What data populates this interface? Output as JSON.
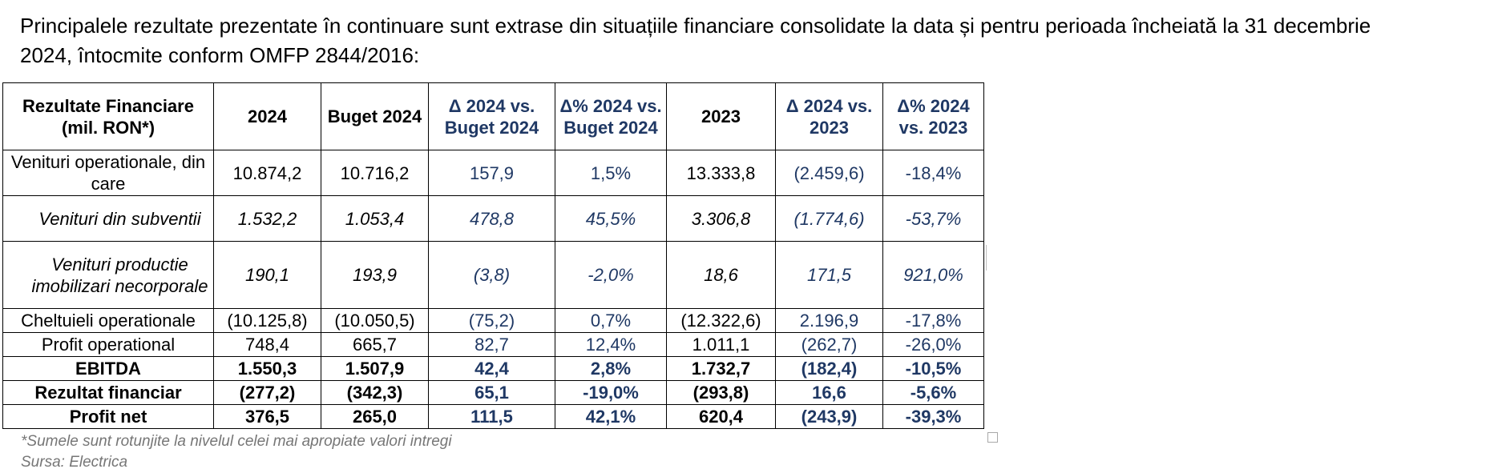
{
  "intro": {
    "line1": "Principalele rezultate prezentate în continuare sunt extrase din situațiile financiare consolidate la data și pentru perioada încheiată la 31 decembrie",
    "line2": "2024, întocmite conform OMFP 2844/2016:"
  },
  "table": {
    "headers": [
      "Rezultate Financiare (mil. RON*)",
      "2024",
      "Buget 2024",
      "Δ 2024 vs. Buget 2024",
      "Δ% 2024 vs. Buget 2024",
      "2023",
      "Δ 2024 vs. 2023",
      "Δ% 2024 vs. 2023"
    ],
    "rows": [
      {
        "style": "normal",
        "cells": [
          "Venituri operationale, din care",
          "10.874,2",
          "10.716,2",
          "157,9",
          "1,5%",
          "13.333,8",
          "(2.459,6)",
          "-18,4%"
        ]
      },
      {
        "style": "italic",
        "cells": [
          "Venituri din subventii",
          "1.532,2",
          "1.053,4",
          "478,8",
          "45,5%",
          "3.306,8",
          "(1.774,6)",
          "-53,7%"
        ]
      },
      {
        "style": "italic",
        "cells": [
          "Venituri productie imobilizari necorporale",
          "190,1",
          "193,9",
          "(3,8)",
          "-2,0%",
          "18,6",
          "171,5",
          "921,0%"
        ]
      },
      {
        "style": "normal",
        "cells": [
          "Cheltuieli operationale",
          "(10.125,8)",
          "(10.050,5)",
          "(75,2)",
          "0,7%",
          "(12.322,6)",
          "2.196,9",
          "-17,8%"
        ]
      },
      {
        "style": "normal",
        "cells": [
          "Profit operational",
          "748,4",
          "665,7",
          "82,7",
          "12,4%",
          "1.011,1",
          "(262,7)",
          "-26,0%"
        ]
      },
      {
        "style": "bold",
        "cells": [
          "EBITDA",
          "1.550,3",
          "1.507,9",
          "42,4",
          "2,8%",
          "1.732,7",
          "(182,4)",
          "-10,5%"
        ]
      },
      {
        "style": "bold",
        "cells": [
          "Rezultat financiar",
          "(277,2)",
          "(342,3)",
          "65,1",
          "-19,0%",
          "(293,8)",
          "16,6",
          "-5,6%"
        ]
      },
      {
        "style": "bold",
        "cells": [
          "Profit net",
          "376,5",
          "265,0",
          "111,5",
          "42,1%",
          "620,4",
          "(243,9)",
          "-39,3%"
        ]
      }
    ]
  },
  "notes": {
    "footnote": "*Sumele sunt rotunjite la nivelul celei mai apropiate valori intregi",
    "source": "Sursa: Electrica"
  },
  "colors": {
    "delta_text": "#1f3864",
    "notes_text": "#767676"
  }
}
